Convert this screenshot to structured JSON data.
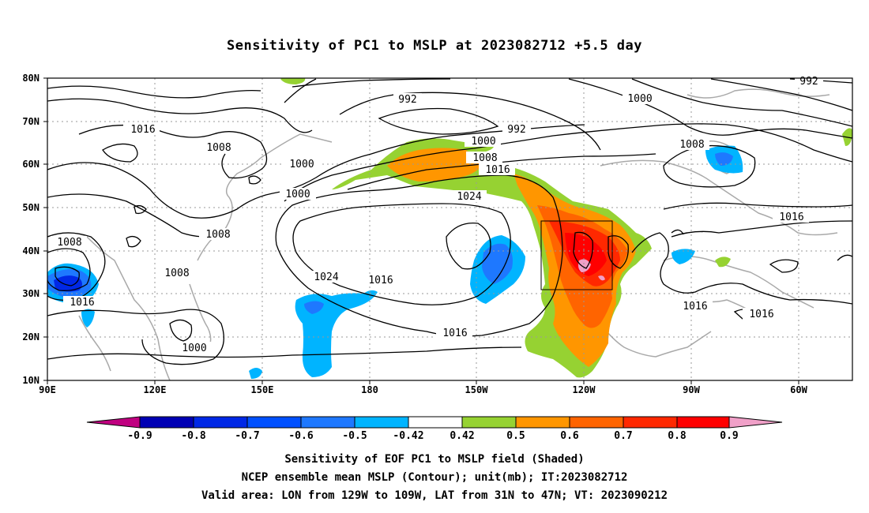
{
  "title": "Sensitivity of PC1 to MSLP at 2023082712 +5.5 day",
  "map": {
    "lat_labels": [
      "80N",
      "70N",
      "60N",
      "50N",
      "40N",
      "30N",
      "20N",
      "10N"
    ],
    "lon_labels": [
      "90E",
      "120E",
      "150E",
      "180",
      "150W",
      "120W",
      "90W",
      "60W"
    ],
    "contour_labels": [
      "992",
      "1000",
      "1008",
      "1016",
      "1024"
    ],
    "valid_box": {
      "lon_from": "129W",
      "lon_to": "109W",
      "lat_from": "31N",
      "lat_to": "47N"
    }
  },
  "colorbar": {
    "labels": [
      "-0.9",
      "-0.8",
      "-0.7",
      "-0.6",
      "-0.5",
      "-0.42",
      "0.42",
      "0.5",
      "0.6",
      "0.7",
      "0.8",
      "0.9"
    ],
    "colors": [
      "#c00080",
      "#0000b4",
      "#0028e6",
      "#0050ff",
      "#1e78ff",
      "#00b4ff",
      "#ffffff",
      "#96d232",
      "#ff9600",
      "#ff6400",
      "#ff2800",
      "#ff0000",
      "#f0a0c8"
    ]
  },
  "captions": {
    "line1": "Sensitivity of EOF PC1 to MSLP field (Shaded)",
    "line2": "NCEP ensemble mean MSLP (Contour); unit(mb); IT:2023082712",
    "line3": "Valid area: LON from 129W to 109W, LAT from 31N to 47N; VT: 2023090212"
  }
}
